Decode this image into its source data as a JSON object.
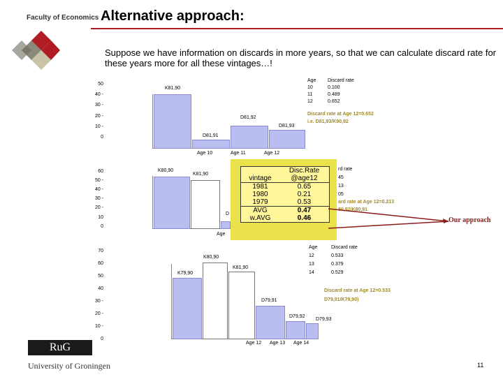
{
  "header": {
    "faculty": "Faculty of Economics",
    "title": "Alternative approach:"
  },
  "intro": "Suppose we have information on discards in more years,  so that we can calculate discard rate for these years more for all these vintages…!",
  "colors": {
    "accent": "#b01e23",
    "bar_fill": "#b9bdf0",
    "overlay": "#e9e24a",
    "annotation": "#a08a2a"
  },
  "chart1": {
    "yticks": [
      "50",
      "40 -",
      "30 -",
      "20 -",
      "10 -",
      "0"
    ],
    "bar_labels": [
      "K81,90",
      "D81,91",
      "D81,92",
      "D81,93"
    ],
    "xlabels": [
      "Age 10",
      "Age 11",
      "Age 12"
    ],
    "table_header": [
      "Age",
      "Discard rate"
    ],
    "table_rows": [
      [
        "10",
        "0.100"
      ],
      [
        "11",
        "0.489"
      ],
      [
        "12",
        "0.652"
      ]
    ],
    "note1": "Discard rate at Age 12=0.652",
    "note2": "i.e. D81,93/K90,92"
  },
  "chart2": {
    "yticks": [
      "60",
      "50 -",
      "40 -",
      "30 -",
      "20 -",
      "10",
      "0"
    ],
    "bar_labels": [
      "K80,90",
      "K81,90",
      "D"
    ],
    "xlabel_partial": "Age",
    "table_header_partial": "rd rate",
    "values_partial": [
      "45",
      "13",
      "05"
    ],
    "note1": "ard rate at Age 12=0.213",
    "note2": "80,92/K80,91"
  },
  "overlay_table": {
    "header1": "Disc.Rate",
    "col1": "vintage",
    "col2": "@age12",
    "rows": [
      {
        "vintage": "1981",
        "rate": "0.65"
      },
      {
        "vintage": "1980",
        "rate": "0.21"
      },
      {
        "vintage": "1979",
        "rate": "0.53"
      }
    ],
    "avg_label": "AVG",
    "avg_value": "0.47",
    "wavg_label": "w.AVG",
    "wavg_value": "0.46"
  },
  "callout": "Our approach",
  "chart3": {
    "yticks": [
      "70",
      "60",
      "50",
      "40",
      "30 -",
      "20 -",
      "10 -",
      "0"
    ],
    "bar_labels": [
      "K79,90",
      "K80,90",
      "K81,90",
      "D79,91",
      "D79,92",
      "D79,93"
    ],
    "xlabels": [
      "Age 12",
      "Age 13",
      "Age 14"
    ],
    "table_header": [
      "Age",
      "Discard rate"
    ],
    "table_rows": [
      [
        "12",
        "0.533"
      ],
      [
        "13",
        "0.379"
      ],
      [
        "14",
        "0.529"
      ]
    ],
    "note1": "Discard rate at Age 12=0.533",
    "note2": "D79,91/K79,90)"
  },
  "footer": {
    "logo": "RuG",
    "university": "University of Groningen",
    "page": "11"
  }
}
